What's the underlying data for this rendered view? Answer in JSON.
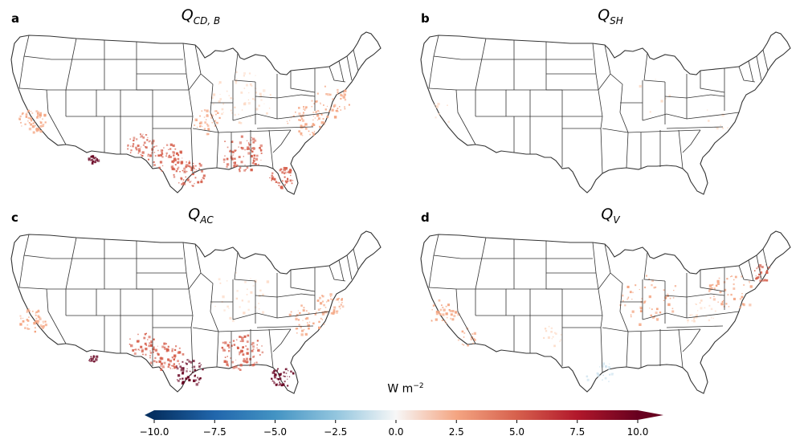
{
  "panels": [
    {
      "letter": "a",
      "title_main": "Q",
      "title_sub": "CD, B",
      "intensity": 1.0,
      "pattern": "cooling"
    },
    {
      "letter": "b",
      "title_main": "Q",
      "title_sub": "SH",
      "intensity": 0.15,
      "pattern": "sensible"
    },
    {
      "letter": "c",
      "title_main": "Q",
      "title_sub": "AC",
      "intensity": 0.9,
      "pattern": "ac"
    },
    {
      "letter": "d",
      "title_main": "Q",
      "title_sub": "V",
      "intensity": 0.55,
      "pattern": "ventilation"
    }
  ],
  "colorbar": {
    "label_main": "W m",
    "label_exp": "−2",
    "min": -10.0,
    "max": 10.0,
    "ticks": [
      {
        "value": -10.0,
        "label": "−10.0"
      },
      {
        "value": -7.5,
        "label": "−7.5"
      },
      {
        "value": -5.0,
        "label": "−5.0"
      },
      {
        "value": -2.5,
        "label": "−2.5"
      },
      {
        "value": 0.0,
        "label": "0.0"
      },
      {
        "value": 2.5,
        "label": "2.5"
      },
      {
        "value": 5.0,
        "label": "5.0"
      },
      {
        "value": 7.5,
        "label": "7.5"
      },
      {
        "value": 10.0,
        "label": "10.0"
      }
    ],
    "colormap": "RdBu_r",
    "extend": "both"
  },
  "colors": {
    "dark_red": "#67001f",
    "red": "#d6604d",
    "light_red": "#f4a582",
    "pale": "#fddbc7",
    "white": "#f7f7f7",
    "light_blue": "#d1e5f0",
    "blue": "#4393c3",
    "dark_blue": "#053061"
  }
}
